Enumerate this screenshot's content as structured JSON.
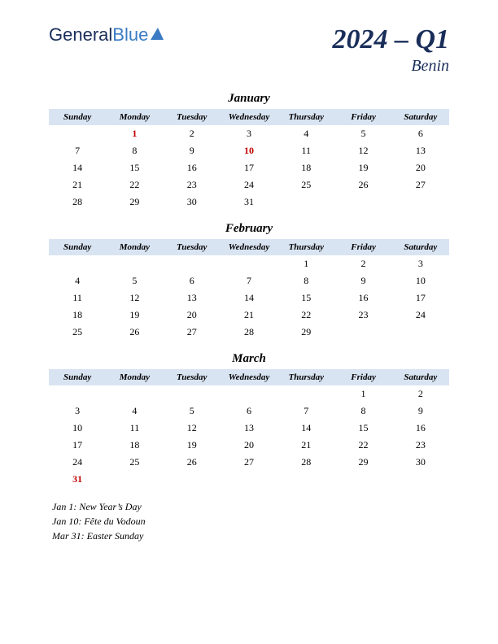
{
  "logo": {
    "part1": "General",
    "part2": "Blue"
  },
  "title": {
    "main": "2024 – Q1",
    "sub": "Benin"
  },
  "day_headers": [
    "Sunday",
    "Monday",
    "Tuesday",
    "Wednesday",
    "Thursday",
    "Friday",
    "Saturday"
  ],
  "colors": {
    "header_bg": "#d9e4f2",
    "title_color": "#1a2e5a",
    "holiday_color": "#c00000",
    "logo_general": "#1a2e5a",
    "logo_blue": "#3b7bc4",
    "logo_triangle": "#3b7bc4"
  },
  "months": [
    {
      "name": "January",
      "weeks": [
        [
          null,
          {
            "d": 1,
            "h": true
          },
          {
            "d": 2
          },
          {
            "d": 3
          },
          {
            "d": 4
          },
          {
            "d": 5
          },
          {
            "d": 6
          }
        ],
        [
          {
            "d": 7
          },
          {
            "d": 8
          },
          {
            "d": 9
          },
          {
            "d": 10,
            "h": true
          },
          {
            "d": 11
          },
          {
            "d": 12
          },
          {
            "d": 13
          }
        ],
        [
          {
            "d": 14
          },
          {
            "d": 15
          },
          {
            "d": 16
          },
          {
            "d": 17
          },
          {
            "d": 18
          },
          {
            "d": 19
          },
          {
            "d": 20
          }
        ],
        [
          {
            "d": 21
          },
          {
            "d": 22
          },
          {
            "d": 23
          },
          {
            "d": 24
          },
          {
            "d": 25
          },
          {
            "d": 26
          },
          {
            "d": 27
          }
        ],
        [
          {
            "d": 28
          },
          {
            "d": 29
          },
          {
            "d": 30
          },
          {
            "d": 31
          },
          null,
          null,
          null
        ]
      ]
    },
    {
      "name": "February",
      "weeks": [
        [
          null,
          null,
          null,
          null,
          {
            "d": 1
          },
          {
            "d": 2
          },
          {
            "d": 3
          }
        ],
        [
          {
            "d": 4
          },
          {
            "d": 5
          },
          {
            "d": 6
          },
          {
            "d": 7
          },
          {
            "d": 8
          },
          {
            "d": 9
          },
          {
            "d": 10
          }
        ],
        [
          {
            "d": 11
          },
          {
            "d": 12
          },
          {
            "d": 13
          },
          {
            "d": 14
          },
          {
            "d": 15
          },
          {
            "d": 16
          },
          {
            "d": 17
          }
        ],
        [
          {
            "d": 18
          },
          {
            "d": 19
          },
          {
            "d": 20
          },
          {
            "d": 21
          },
          {
            "d": 22
          },
          {
            "d": 23
          },
          {
            "d": 24
          }
        ],
        [
          {
            "d": 25
          },
          {
            "d": 26
          },
          {
            "d": 27
          },
          {
            "d": 28
          },
          {
            "d": 29
          },
          null,
          null
        ]
      ]
    },
    {
      "name": "March",
      "weeks": [
        [
          null,
          null,
          null,
          null,
          null,
          {
            "d": 1
          },
          {
            "d": 2
          }
        ],
        [
          {
            "d": 3
          },
          {
            "d": 4
          },
          {
            "d": 5
          },
          {
            "d": 6
          },
          {
            "d": 7
          },
          {
            "d": 8
          },
          {
            "d": 9
          }
        ],
        [
          {
            "d": 10
          },
          {
            "d": 11
          },
          {
            "d": 12
          },
          {
            "d": 13
          },
          {
            "d": 14
          },
          {
            "d": 15
          },
          {
            "d": 16
          }
        ],
        [
          {
            "d": 17
          },
          {
            "d": 18
          },
          {
            "d": 19
          },
          {
            "d": 20
          },
          {
            "d": 21
          },
          {
            "d": 22
          },
          {
            "d": 23
          }
        ],
        [
          {
            "d": 24
          },
          {
            "d": 25
          },
          {
            "d": 26
          },
          {
            "d": 27
          },
          {
            "d": 28
          },
          {
            "d": 29
          },
          {
            "d": 30
          }
        ],
        [
          {
            "d": 31,
            "h": true
          },
          null,
          null,
          null,
          null,
          null,
          null
        ]
      ]
    }
  ],
  "holidays_list": [
    "Jan 1: New Year’s Day",
    "Jan 10: Fête du Vodoun",
    "Mar 31: Easter Sunday"
  ]
}
